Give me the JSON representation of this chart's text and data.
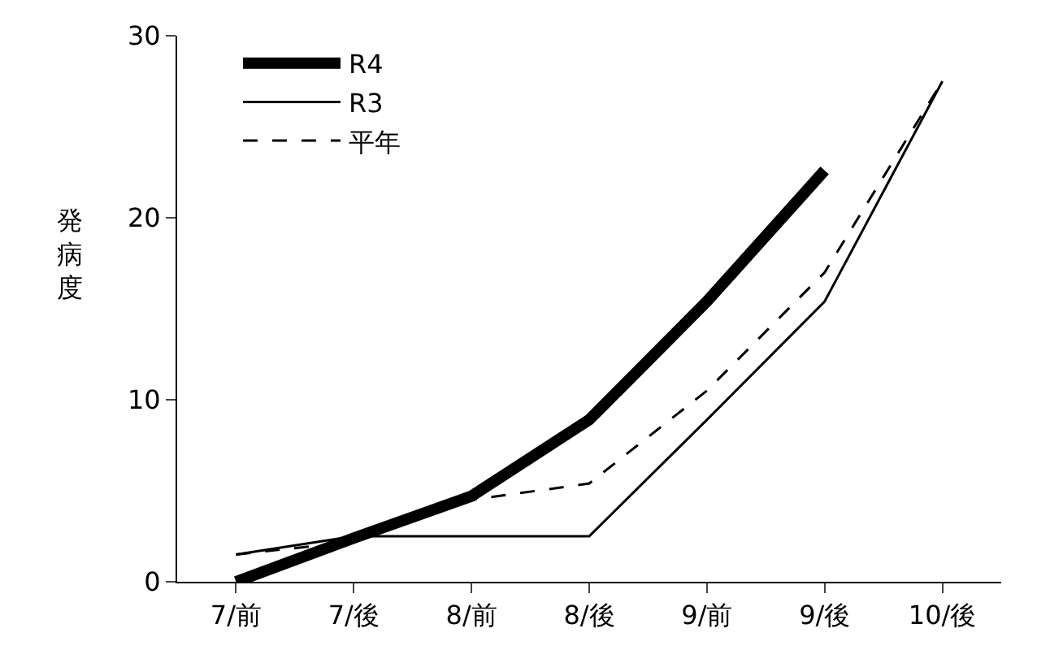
{
  "chart_data": {
    "type": "line",
    "ylabel": "発病度",
    "categories": [
      "7/前",
      "7/後",
      "8/前",
      "8/後",
      "9/前",
      "9/後",
      "10/後"
    ],
    "series": [
      {
        "name": "R4",
        "color": "#000000",
        "line_style": "solid",
        "values": [
          0,
          2.4,
          4.7,
          8.9,
          15.4,
          22.6,
          null
        ]
      },
      {
        "name": "R3",
        "color": "#000000",
        "line_style": "solid",
        "values": [
          1.5,
          2.5,
          2.5,
          2.5,
          8.9,
          15.4,
          27.5
        ]
      },
      {
        "name": "平年",
        "color": "#000000",
        "line_style": "dashed",
        "values": [
          1.5,
          2.2,
          4.5,
          5.4,
          10.5,
          17,
          27.5
        ]
      }
    ],
    "ylim": [
      0,
      30
    ],
    "yticks": [
      0,
      10,
      20,
      30
    ],
    "legend": "top left",
    "marker": "none"
  }
}
